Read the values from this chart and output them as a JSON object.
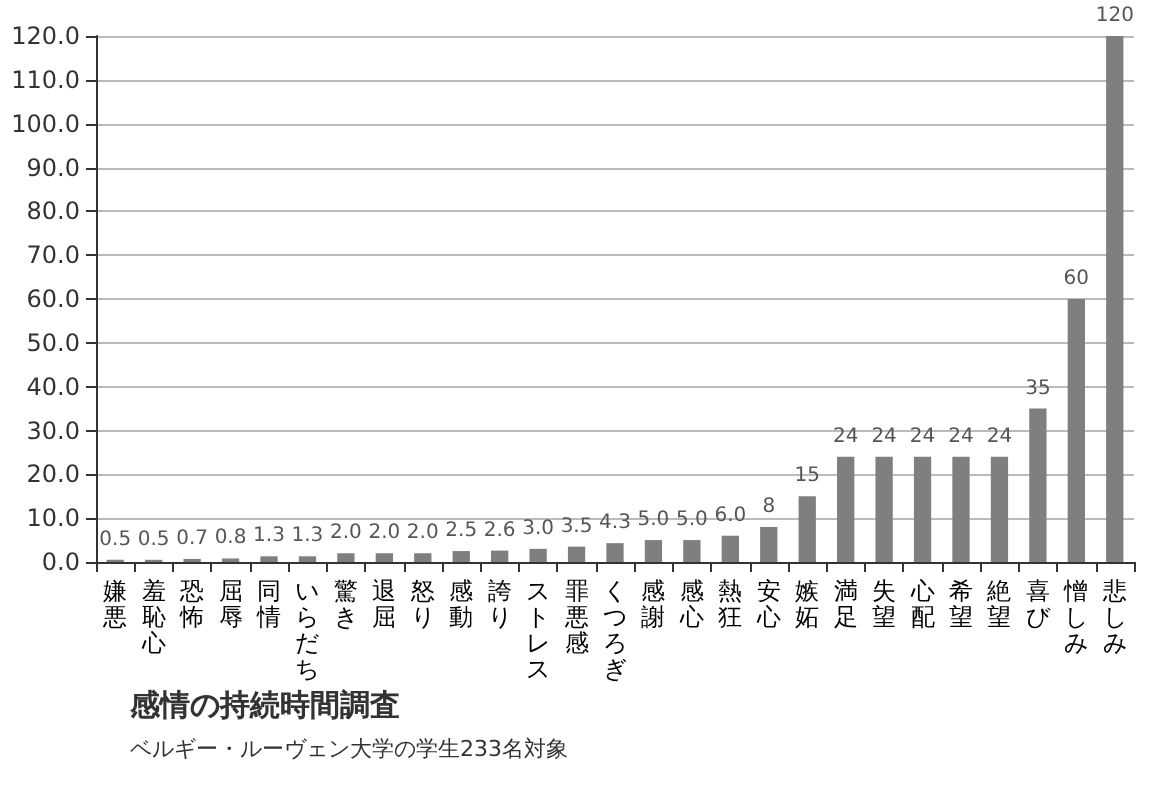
{
  "chart_data": {
    "type": "bar",
    "title": "感情の持続時間調査",
    "subtitle": "ベルギー・ルーヴェン大学の学生233名対象",
    "categories": [
      "嫌悪",
      "羞恥心",
      "恐怖",
      "屈辱",
      "同情",
      "いらだち",
      "驚き",
      "退屈",
      "怒り",
      "感動",
      "誇り",
      "ストレス",
      "罪悪感",
      "くつろぎ",
      "感謝",
      "感心",
      "熱狂",
      "安心",
      "嫉妬",
      "満足",
      "失望",
      "心配",
      "希望",
      "絶望",
      "喜び",
      "憎しみ",
      "悲しみ"
    ],
    "values": [
      0.5,
      0.5,
      0.7,
      0.8,
      1.3,
      1.3,
      2.0,
      2.0,
      2.0,
      2.5,
      2.6,
      3.0,
      3.5,
      4.3,
      5.0,
      5.0,
      6.0,
      8,
      15,
      24,
      24,
      24,
      24,
      24,
      35,
      60,
      120
    ],
    "value_labels": [
      "0.5",
      "0.5",
      "0.7",
      "0.8",
      "1.3",
      "1.3",
      "2.0",
      "2.0",
      "2.0",
      "2.5",
      "2.6",
      "3.0",
      "3.5",
      "4.3",
      "5.0",
      "5.0",
      "6.0",
      "8",
      "15",
      "24",
      "24",
      "24",
      "24",
      "24",
      "35",
      "60",
      "120"
    ],
    "color": "#7f7f7f",
    "ylim": [
      0,
      120
    ],
    "yticks": [
      {
        "value": 0,
        "label": "0.0"
      },
      {
        "value": 10,
        "label": "10.0"
      },
      {
        "value": 20,
        "label": "20.0"
      },
      {
        "value": 30,
        "label": "30.0"
      },
      {
        "value": 40,
        "label": "40.0"
      },
      {
        "value": 50,
        "label": "50.0"
      },
      {
        "value": 60,
        "label": "60.0"
      },
      {
        "value": 70,
        "label": "70.0"
      },
      {
        "value": 80,
        "label": "80.0"
      },
      {
        "value": 90,
        "label": "90.0"
      },
      {
        "value": 100,
        "label": "100.0"
      },
      {
        "value": 110,
        "label": "110.0"
      },
      {
        "value": 120,
        "label": "120.0"
      }
    ],
    "grid": "y"
  }
}
